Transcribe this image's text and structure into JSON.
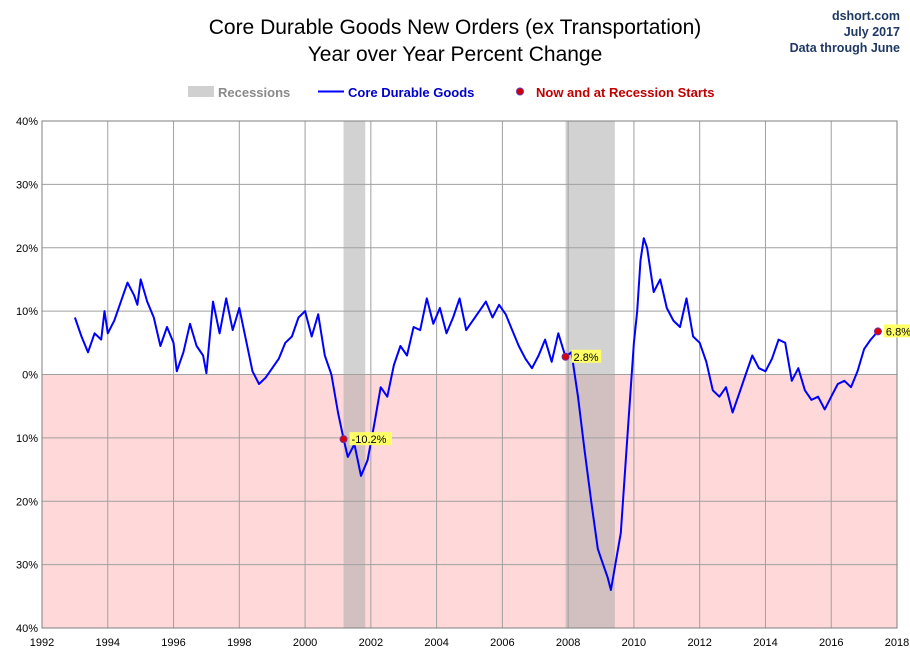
{
  "chart_data": {
    "type": "line",
    "title": "Core Durable Goods New Orders (ex Transportation)",
    "subtitle": "Year over Year Percent Change",
    "source": "dshort.com",
    "date": "July 2017",
    "data_note": "Data through June",
    "ylim": [
      -40,
      40
    ],
    "xlim": [
      1992,
      2018
    ],
    "yticks": [
      40,
      30,
      20,
      10,
      0,
      -10,
      -20,
      -30,
      -40
    ],
    "ytick_labels": [
      "40%",
      "30%",
      "20%",
      "10%",
      "0%",
      "10%",
      "20%",
      "30%",
      "40%"
    ],
    "xticks": [
      1992,
      1994,
      1996,
      1998,
      2000,
      2002,
      2004,
      2006,
      2008,
      2010,
      2012,
      2014,
      2016,
      2018
    ],
    "xtick_labels": [
      "1992",
      "1994",
      "1996",
      "1998",
      "2000",
      "2002",
      "2004",
      "2006",
      "2008",
      "2010",
      "2012",
      "2014",
      "2016",
      "2018"
    ],
    "legend": {
      "recessions": "Recessions",
      "series": "Core Durable Goods",
      "markers": "Now and at Recession Starts"
    },
    "recessions": [
      [
        2001.17,
        2001.83
      ],
      [
        2007.92,
        2009.42
      ]
    ],
    "series": [
      {
        "name": "Core Durable Goods",
        "color": "#0000ff",
        "x": [
          1993.0,
          1993.2,
          1993.4,
          1993.6,
          1993.8,
          1993.9,
          1994.0,
          1994.2,
          1994.4,
          1994.6,
          1994.8,
          1994.9,
          1995.0,
          1995.2,
          1995.4,
          1995.6,
          1995.8,
          1996.0,
          1996.1,
          1996.3,
          1996.5,
          1996.7,
          1996.9,
          1997.0,
          1997.2,
          1997.4,
          1997.6,
          1997.8,
          1998.0,
          1998.2,
          1998.4,
          1998.6,
          1998.8,
          1999.0,
          1999.2,
          1999.4,
          1999.6,
          1999.8,
          2000.0,
          2000.2,
          2000.4,
          2000.6,
          2000.8,
          2001.0,
          2001.17,
          2001.3,
          2001.5,
          2001.7,
          2001.9,
          2002.1,
          2002.3,
          2002.5,
          2002.7,
          2002.9,
          2003.1,
          2003.3,
          2003.5,
          2003.7,
          2003.9,
          2004.1,
          2004.3,
          2004.5,
          2004.7,
          2004.9,
          2005.1,
          2005.3,
          2005.5,
          2005.7,
          2005.9,
          2006.1,
          2006.3,
          2006.5,
          2006.7,
          2006.9,
          2007.1,
          2007.3,
          2007.5,
          2007.7,
          2007.92,
          2008.1,
          2008.3,
          2008.5,
          2008.7,
          2008.9,
          2009.0,
          2009.1,
          2009.2,
          2009.3,
          2009.4,
          2009.6,
          2009.8,
          2010.0,
          2010.1,
          2010.2,
          2010.3,
          2010.4,
          2010.6,
          2010.8,
          2011.0,
          2011.2,
          2011.4,
          2011.6,
          2011.8,
          2012.0,
          2012.2,
          2012.4,
          2012.6,
          2012.8,
          2013.0,
          2013.2,
          2013.4,
          2013.6,
          2013.8,
          2014.0,
          2014.2,
          2014.4,
          2014.6,
          2014.8,
          2015.0,
          2015.2,
          2015.4,
          2015.6,
          2015.8,
          2016.0,
          2016.2,
          2016.4,
          2016.6,
          2016.8,
          2017.0,
          2017.2,
          2017.42
        ],
        "y": [
          9.0,
          6.0,
          3.5,
          6.5,
          5.5,
          10.0,
          6.5,
          8.5,
          11.5,
          14.5,
          12.5,
          11.0,
          15.0,
          11.5,
          9.0,
          4.5,
          7.5,
          5.0,
          0.5,
          3.5,
          8.0,
          4.5,
          3.0,
          0.2,
          11.5,
          6.5,
          12.0,
          7.0,
          10.5,
          5.5,
          0.5,
          -1.5,
          -0.5,
          1.0,
          2.5,
          5.0,
          6.0,
          9.0,
          10.0,
          6.0,
          9.5,
          3.0,
          0.0,
          -6.0,
          -10.2,
          -13.0,
          -11.0,
          -16.0,
          -13.5,
          -8.0,
          -2.0,
          -3.5,
          1.5,
          4.5,
          3.0,
          7.5,
          7.0,
          12.0,
          8.0,
          10.5,
          6.5,
          9.0,
          12.0,
          7.0,
          8.5,
          10.0,
          11.5,
          9.0,
          11.0,
          9.5,
          7.0,
          4.5,
          2.5,
          1.0,
          3.0,
          5.5,
          2.0,
          6.5,
          2.8,
          3.5,
          -3.5,
          -12.0,
          -20.0,
          -27.5,
          -29.0,
          -30.5,
          -32.0,
          -34.0,
          -31.0,
          -25.0,
          -10.0,
          5.0,
          10.0,
          18.0,
          21.5,
          20.0,
          13.0,
          15.0,
          10.5,
          8.5,
          7.5,
          12.0,
          6.0,
          5.0,
          2.0,
          -2.5,
          -3.5,
          -2.0,
          -6.0,
          -3.0,
          0.0,
          3.0,
          1.0,
          0.5,
          2.5,
          5.5,
          5.0,
          -1.0,
          1.0,
          -2.5,
          -4.0,
          -3.5,
          -5.5,
          -3.5,
          -1.5,
          -1.0,
          -2.0,
          0.5,
          4.0,
          5.5,
          6.8
        ]
      }
    ],
    "markers": [
      {
        "x": 2001.17,
        "y": -10.2,
        "label": "-10.2%"
      },
      {
        "x": 2007.92,
        "y": 2.8,
        "label": "2.8%"
      },
      {
        "x": 2017.42,
        "y": 6.8,
        "label": "6.8%"
      }
    ]
  }
}
